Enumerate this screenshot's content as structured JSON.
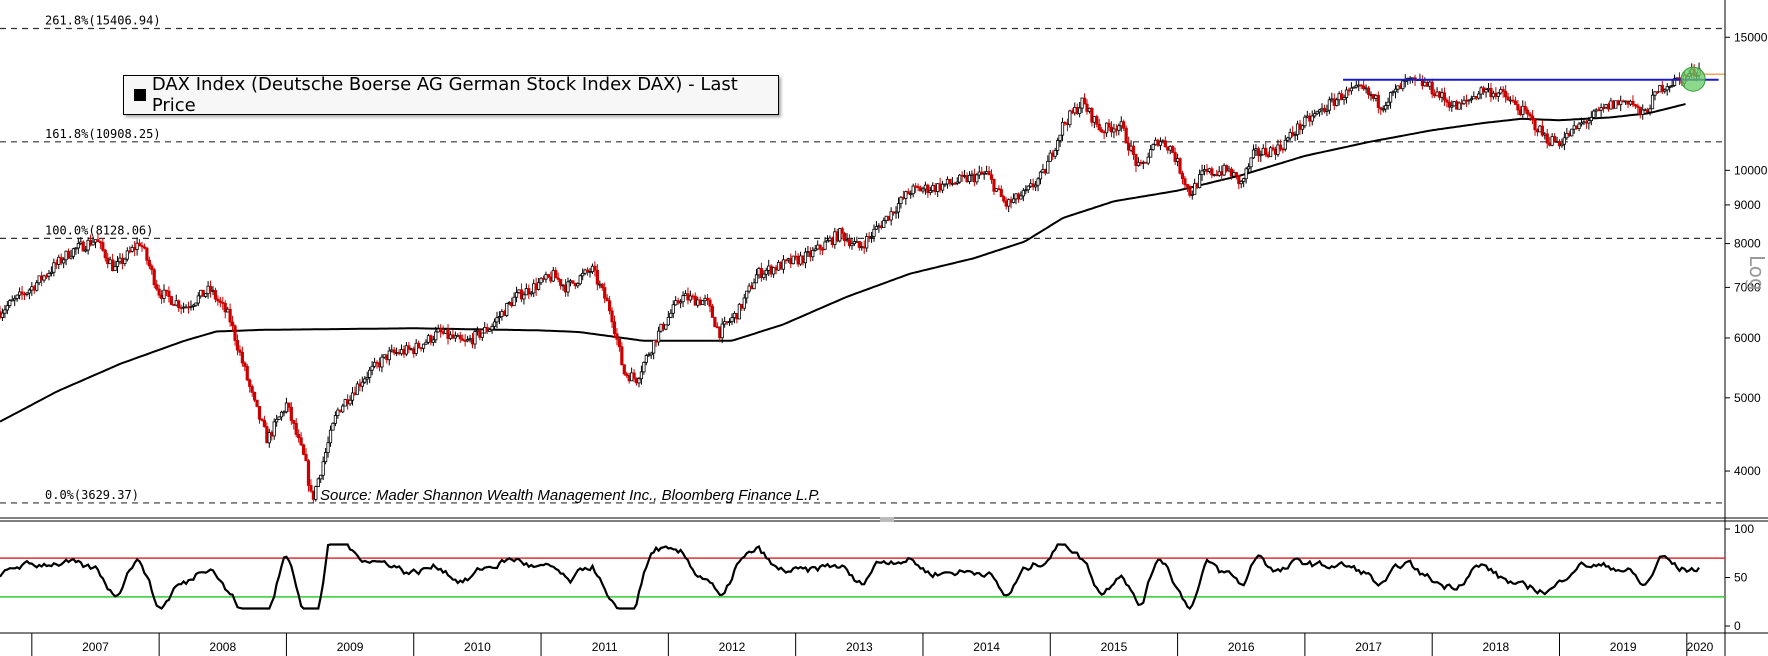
{
  "chart_data": [
    {
      "type": "candlestick",
      "legend": {
        "label": "DAX Index (Deutsche Boerse AG German Stock Index DAX) - Last Price",
        "placement": "top-left"
      },
      "source": "Source: Mader Shannon Wealth Management Inc., Bloomberg Finance L.P.",
      "scale_label": "Log",
      "y_scale": "log",
      "ylim": [
        3500,
        17000
      ],
      "xlim": [
        2006.75,
        2020.3
      ],
      "y_ticks": [
        "15000",
        "10000",
        "9000",
        "8000",
        "7000",
        "6000",
        "5000",
        "4000"
      ],
      "x_ticks": [
        "2007",
        "2008",
        "2009",
        "2010",
        "2011",
        "2012",
        "2013",
        "2014",
        "2015",
        "2016",
        "2017",
        "2018",
        "2019",
        "2020"
      ],
      "fib_levels": [
        {
          "label": "261.8%(15406.94)",
          "value": 15406.94
        },
        {
          "label": "161.8%(10908.25)",
          "value": 10908.25
        },
        {
          "label": "100.0%(8128.06)",
          "value": 8128.06
        },
        {
          "label": "0.0%(3629.37)",
          "value": 3629.37
        }
      ],
      "price_path": [
        [
          2006.75,
          6500
        ],
        [
          2007.0,
          7000
        ],
        [
          2007.3,
          7800
        ],
        [
          2007.5,
          8100
        ],
        [
          2007.65,
          7400
        ],
        [
          2007.85,
          8050
        ],
        [
          2008.0,
          6900
        ],
        [
          2008.2,
          6600
        ],
        [
          2008.4,
          6950
        ],
        [
          2008.55,
          6400
        ],
        [
          2008.75,
          4900
        ],
        [
          2008.85,
          4400
        ],
        [
          2009.0,
          4900
        ],
        [
          2009.15,
          4100
        ],
        [
          2009.2,
          3650
        ],
        [
          2009.4,
          4800
        ],
        [
          2009.6,
          5300
        ],
        [
          2009.8,
          5700
        ],
        [
          2010.0,
          5800
        ],
        [
          2010.2,
          6100
        ],
        [
          2010.4,
          5900
        ],
        [
          2010.6,
          6200
        ],
        [
          2010.8,
          6800
        ],
        [
          2011.0,
          7100
        ],
        [
          2011.1,
          7250
        ],
        [
          2011.2,
          7000
        ],
        [
          2011.4,
          7400
        ],
        [
          2011.55,
          6500
        ],
        [
          2011.65,
          5400
        ],
        [
          2011.75,
          5300
        ],
        [
          2011.9,
          6000
        ],
        [
          2012.1,
          6800
        ],
        [
          2012.3,
          6700
        ],
        [
          2012.4,
          6100
        ],
        [
          2012.55,
          6500
        ],
        [
          2012.7,
          7300
        ],
        [
          2012.9,
          7500
        ],
        [
          2013.1,
          7700
        ],
        [
          2013.35,
          8250
        ],
        [
          2013.5,
          7900
        ],
        [
          2013.7,
          8600
        ],
        [
          2013.9,
          9400
        ],
        [
          2014.1,
          9500
        ],
        [
          2014.3,
          9700
        ],
        [
          2014.5,
          9900
        ],
        [
          2014.65,
          9000
        ],
        [
          2014.8,
          9300
        ],
        [
          2014.95,
          9900
        ],
        [
          2015.1,
          11500
        ],
        [
          2015.25,
          12300
        ],
        [
          2015.4,
          11300
        ],
        [
          2015.55,
          11500
        ],
        [
          2015.7,
          10000
        ],
        [
          2015.85,
          11000
        ],
        [
          2015.95,
          10700
        ],
        [
          2016.1,
          9300
        ],
        [
          2016.2,
          9900
        ],
        [
          2016.4,
          10000
        ],
        [
          2016.5,
          9600
        ],
        [
          2016.6,
          10500
        ],
        [
          2016.8,
          10700
        ],
        [
          2016.95,
          11400
        ],
        [
          2017.1,
          11900
        ],
        [
          2017.3,
          12600
        ],
        [
          2017.45,
          12800
        ],
        [
          2017.6,
          12200
        ],
        [
          2017.8,
          13100
        ],
        [
          2017.95,
          13000
        ],
        [
          2018.1,
          12400
        ],
        [
          2018.2,
          12100
        ],
        [
          2018.4,
          12800
        ],
        [
          2018.55,
          12600
        ],
        [
          2018.75,
          11800
        ],
        [
          2018.9,
          11000
        ],
        [
          2019.0,
          10900
        ],
        [
          2019.2,
          11600
        ],
        [
          2019.4,
          12200
        ],
        [
          2019.55,
          12400
        ],
        [
          2019.65,
          11800
        ],
        [
          2019.8,
          12900
        ],
        [
          2019.95,
          13200
        ],
        [
          2020.1,
          13600
        ]
      ],
      "moving_average_path": [
        [
          2006.75,
          4650
        ],
        [
          2007.2,
          5100
        ],
        [
          2007.7,
          5550
        ],
        [
          2008.2,
          5950
        ],
        [
          2008.45,
          6120
        ],
        [
          2008.8,
          6150
        ],
        [
          2010.0,
          6180
        ],
        [
          2011.0,
          6140
        ],
        [
          2011.3,
          6110
        ],
        [
          2011.55,
          6030
        ],
        [
          2011.8,
          5950
        ],
        [
          2012.5,
          5950
        ],
        [
          2012.9,
          6250
        ],
        [
          2013.4,
          6800
        ],
        [
          2013.9,
          7300
        ],
        [
          2014.4,
          7650
        ],
        [
          2014.8,
          8050
        ],
        [
          2015.1,
          8650
        ],
        [
          2015.5,
          9100
        ],
        [
          2016.0,
          9400
        ],
        [
          2016.5,
          9850
        ],
        [
          2017.0,
          10450
        ],
        [
          2017.5,
          10900
        ],
        [
          2018.0,
          11300
        ],
        [
          2018.4,
          11550
        ],
        [
          2018.7,
          11700
        ],
        [
          2019.0,
          11650
        ],
        [
          2019.4,
          11750
        ],
        [
          2019.7,
          11900
        ],
        [
          2020.0,
          12250
        ]
      ],
      "resistance_line": {
        "x": [
          2017.3,
          2020.25
        ],
        "y": 13180,
        "color": "#1a1acc"
      },
      "last_price_line": {
        "value": 13400,
        "color": "#f4a460"
      },
      "highlight": {
        "x": 2020.05,
        "y": 13200,
        "color": "#66cc66"
      }
    },
    {
      "type": "line",
      "indicator_range": [
        0,
        100
      ],
      "y_ticks": [
        "100",
        "50",
        "0"
      ],
      "upper_band": {
        "value": 70,
        "color": "#e03030"
      },
      "lower_band": {
        "value": 30,
        "color": "#33cc33"
      }
    }
  ]
}
